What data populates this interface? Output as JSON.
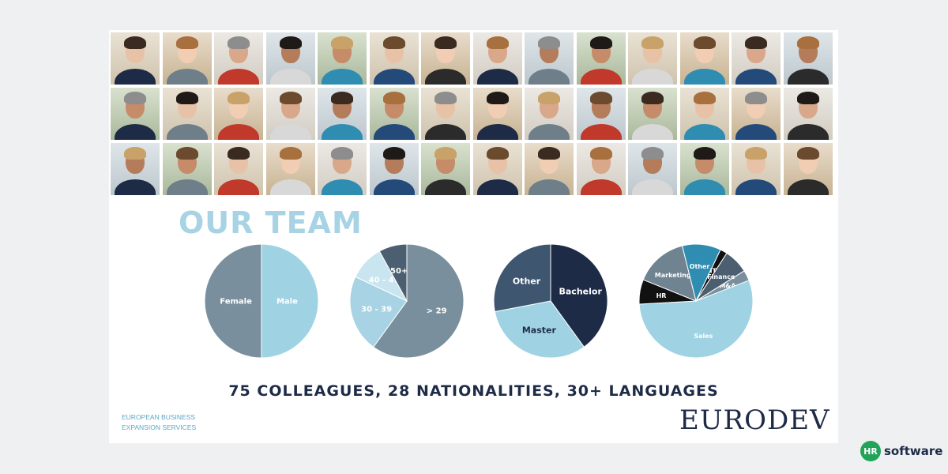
{
  "title": "OUR TEAM",
  "stats_line": "75 COLLEAGUES, 28 NATIONALITIES, 30+ LANGUAGES",
  "tagline": [
    "EUROPEAN BUSINESS",
    "EXPANSION SERVICES"
  ],
  "logo": {
    "text": "EURODEV"
  },
  "brand": {
    "mark": "HR",
    "name": "software"
  },
  "photos": {
    "rows": 3,
    "columns": 14,
    "count": 42
  },
  "colors": {
    "light_blue": "#9fd2e3",
    "slate": "#7a8f9d",
    "dark_slate": "#4c5f70",
    "navy": "#1e2b47",
    "teal": "#2f8db1",
    "black": "#111111",
    "title": "#a7d3e4"
  },
  "chart_data": [
    {
      "type": "pie",
      "title": "",
      "slices": [
        {
          "label": "Male",
          "value": 50,
          "color": "#9fd2e3"
        },
        {
          "label": "Female",
          "value": 50,
          "color": "#7a8f9d"
        }
      ]
    },
    {
      "type": "pie",
      "title": "",
      "slices": [
        {
          "label": "> 29",
          "value": 60,
          "color": "#7a8f9d"
        },
        {
          "label": "30 - 39",
          "value": 22,
          "color": "#a7d3e4"
        },
        {
          "label": "40 - 49",
          "value": 10,
          "color": "#c9e5ef"
        },
        {
          "label": "50+",
          "value": 8,
          "color": "#4c5f70"
        }
      ]
    },
    {
      "type": "pie",
      "title": "",
      "slices": [
        {
          "label": "Bachelor",
          "value": 40,
          "color": "#1e2b47"
        },
        {
          "label": "Master",
          "value": 32,
          "color": "#9fd2e3"
        },
        {
          "label": "Other",
          "value": 28,
          "color": "#3e5670"
        }
      ]
    },
    {
      "type": "pie",
      "title": "",
      "slices": [
        {
          "label": "M&A",
          "value": 3,
          "color": "#7a8f9d"
        },
        {
          "label": "Sales",
          "value": 55,
          "color": "#9fd2e3"
        },
        {
          "label": "HR",
          "value": 7,
          "color": "#111111"
        },
        {
          "label": "Marketing",
          "value": 15,
          "color": "#6f8391"
        },
        {
          "label": "Other",
          "value": 11,
          "color": "#2f8db1"
        },
        {
          "label": "IT",
          "value": 2,
          "color": "#111111"
        },
        {
          "label": "Finance",
          "value": 7,
          "color": "#4c5f70"
        }
      ]
    }
  ]
}
